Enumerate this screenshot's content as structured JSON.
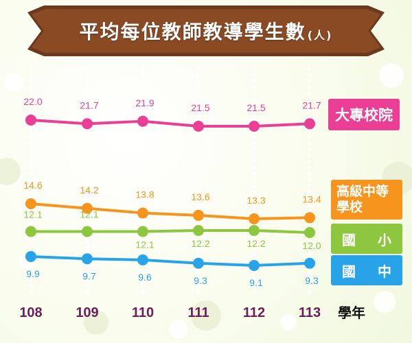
{
  "title": {
    "main": "平均每位教師教導學生數",
    "unit": "(人)"
  },
  "x_axis_label": "學年",
  "legend": {
    "daxue": "大專校院",
    "gaozhong": "高級中等學校",
    "guoxiao": [
      "國",
      "小"
    ],
    "guozhong": [
      "國",
      "中"
    ]
  },
  "chart_data": {
    "type": "line",
    "title": "平均每位教師教導學生數(人)",
    "xlabel": "學年",
    "ylabel": "",
    "categories": [
      "108",
      "109",
      "110",
      "111",
      "112",
      "113"
    ],
    "grid": true,
    "legend_position": "right",
    "series": [
      {
        "name": "大專校院",
        "color": "#ea3f95",
        "values": [
          22.0,
          21.7,
          21.9,
          21.5,
          21.5,
          21.7
        ]
      },
      {
        "name": "高級中等學校",
        "color": "#f7941d",
        "values": [
          14.6,
          14.2,
          13.8,
          13.6,
          13.3,
          13.4
        ]
      },
      {
        "name": "國小",
        "color": "#8dc63f",
        "values": [
          12.1,
          12.1,
          12.1,
          12.2,
          12.2,
          12.0
        ]
      },
      {
        "name": "國中",
        "color": "#29a3e8",
        "values": [
          9.9,
          9.7,
          9.6,
          9.3,
          9.1,
          9.3
        ]
      }
    ]
  }
}
